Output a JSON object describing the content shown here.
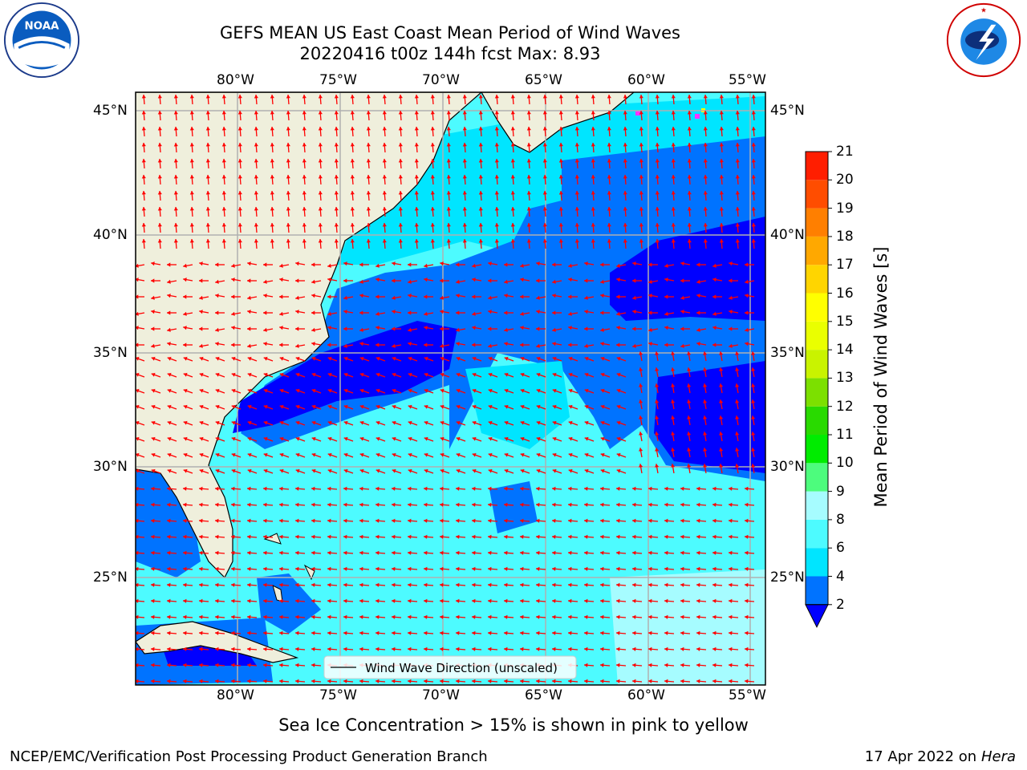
{
  "header": {
    "title_line1": "GEFS MEAN US East Coast Mean Period of Wind Waves",
    "title_line2": "20220416 t00z 144h fcst   Max: 8.93"
  },
  "logos": {
    "left_text": "NOAA",
    "left_ring_text": "NATIONAL OCEANIC AND ATMOSPHERIC ADMINISTRATION · U.S. DEPARTMENT OF COMMERCE",
    "right_ring_text": "NATIONAL WEATHER SERVICE"
  },
  "map": {
    "lon_labels": [
      "80°W",
      "75°W",
      "70°W",
      "65°W",
      "60°W",
      "55°W"
    ],
    "lat_labels": [
      "45°N",
      "40°N",
      "35°N",
      "30°N",
      "25°N"
    ],
    "legend_label": "Wind Wave Direction (unscaled)",
    "colors": {
      "land": "#efefdc",
      "grid": "#b0b0b0",
      "arrow": "#ff0000"
    }
  },
  "colorbar": {
    "label": "Mean Period of Wind Waves [s]",
    "ticks": [
      "2",
      "4",
      "6",
      "8",
      "9",
      "10",
      "11",
      "12",
      "13",
      "14",
      "15",
      "16",
      "17",
      "18",
      "19",
      "20",
      "21"
    ],
    "colors": [
      "#0073ff",
      "#00e5ff",
      "#4dfbff",
      "#a6fcff",
      "#4dfc7d",
      "#00ec00",
      "#29da00",
      "#7ce000",
      "#c9f300",
      "#eaff00",
      "#ffff00",
      "#ffd500",
      "#ffa800",
      "#ff7f00",
      "#ff4d00",
      "#ff1e00",
      "#ff0000"
    ],
    "extend_color": "#0000ff"
  },
  "footer": {
    "note": "Sea Ice Concentration > 15% is shown in pink to yellow",
    "credit": "NCEP/EMC/Verification Post Processing Product Generation Branch",
    "date": "17 Apr 2022 on ",
    "host": "Hera"
  }
}
